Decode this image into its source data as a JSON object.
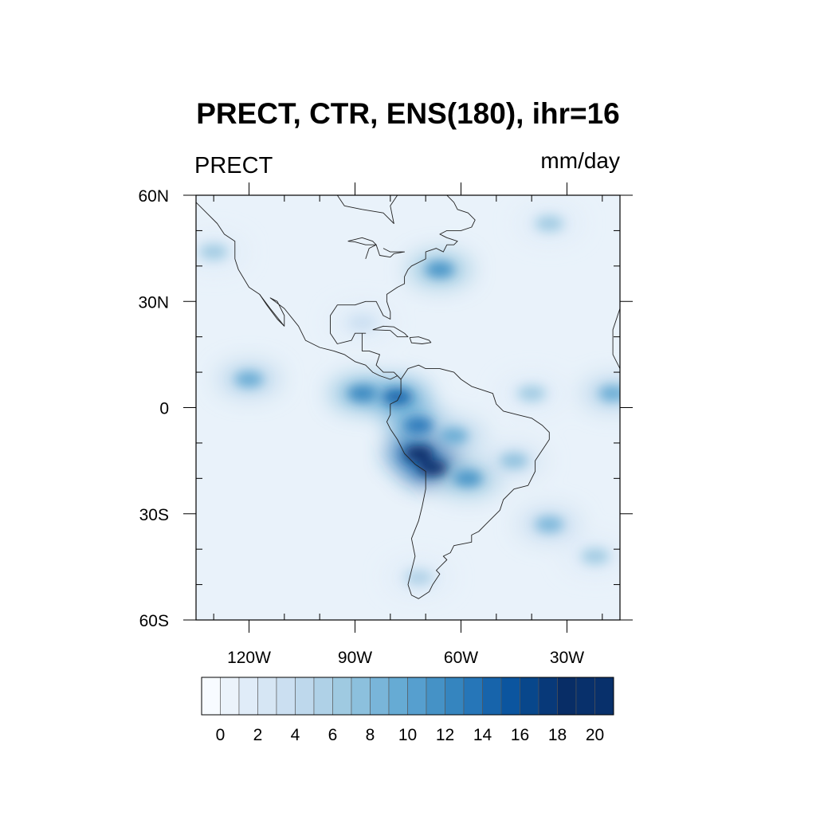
{
  "title": "PRECT, CTR, ENS(180), ihr=16",
  "left_string": "PRECT",
  "right_string": "mm/day",
  "map": {
    "lon_range": [
      -135,
      -15
    ],
    "lat_range": [
      -60,
      60
    ],
    "lat_tick_labels": [
      {
        "lat": 60,
        "label": "60N"
      },
      {
        "lat": 30,
        "label": "30N"
      },
      {
        "lat": 0,
        "label": "0"
      },
      {
        "lat": -30,
        "label": "30S"
      },
      {
        "lat": -60,
        "label": "60S"
      }
    ],
    "lon_tick_labels": [
      {
        "lon": -120,
        "label": "120W"
      },
      {
        "lon": -90,
        "label": "90W"
      },
      {
        "lon": -60,
        "label": "60W"
      },
      {
        "lon": -30,
        "label": "30W"
      }
    ],
    "minor_lat_ticks": [
      50,
      40,
      20,
      10,
      -10,
      -20,
      -40,
      -50
    ],
    "minor_lon_ticks": [
      -130,
      -110,
      -100,
      -80,
      -70,
      -50,
      -40,
      -20
    ],
    "precip_features": [
      {
        "name": "itcz-east-pacific",
        "lon": -120,
        "lat": 8,
        "value": 9
      },
      {
        "name": "itcz-near-panama",
        "lon": -88,
        "lat": 4,
        "value": 12
      },
      {
        "name": "itcz-colombia",
        "lon": -78,
        "lat": 3,
        "value": 14
      },
      {
        "name": "itcz-atlantic",
        "lon": -40,
        "lat": 4,
        "value": 6
      },
      {
        "name": "itcz-east-edge",
        "lon": -17,
        "lat": 4,
        "value": 9
      },
      {
        "name": "amazon-west",
        "lon": -72,
        "lat": -5,
        "value": 13
      },
      {
        "name": "amazon-central",
        "lon": -62,
        "lat": -8,
        "value": 9
      },
      {
        "name": "bolivia-max",
        "lon": -68,
        "lat": -17,
        "value": 19
      },
      {
        "name": "bolivia-secondary",
        "lon": -72,
        "lat": -13,
        "value": 18
      },
      {
        "name": "gran-chaco",
        "lon": -58,
        "lat": -20,
        "value": 11
      },
      {
        "name": "sacz",
        "lon": -45,
        "lat": -15,
        "value": 7
      },
      {
        "name": "north-atlantic-storm",
        "lon": -66,
        "lat": 39,
        "value": 11
      },
      {
        "name": "north-atlantic-high-lat",
        "lon": -35,
        "lat": 52,
        "value": 6
      },
      {
        "name": "pacific-northwest",
        "lon": -130,
        "lat": 44,
        "value": 6
      },
      {
        "name": "south-atlantic-band",
        "lon": -35,
        "lat": -33,
        "value": 8
      },
      {
        "name": "south-atlantic-band-east",
        "lon": -22,
        "lat": -42,
        "value": 6
      },
      {
        "name": "southern-chile",
        "lon": -72,
        "lat": -48,
        "value": 5
      },
      {
        "name": "gulf-of-mexico",
        "lon": -88,
        "lat": 24,
        "value": 3
      }
    ]
  },
  "colorbar": {
    "label_values": [
      "0",
      "2",
      "4",
      "6",
      "8",
      "10",
      "12",
      "14",
      "16",
      "18",
      "20"
    ],
    "colors": [
      "#f7fbff",
      "#ebf3fb",
      "#e0ecf8",
      "#d6e6f4",
      "#cbdff1",
      "#bed8ec",
      "#afd1e7",
      "#9fcae1",
      "#8cc0dd",
      "#79b5d9",
      "#66abd4",
      "#569fcf",
      "#4592c6",
      "#3585bf",
      "#2676b8",
      "#1764ab",
      "#0b559f",
      "#08478b",
      "#083979",
      "#082d66",
      "#08306b",
      "#08306b"
    ]
  }
}
